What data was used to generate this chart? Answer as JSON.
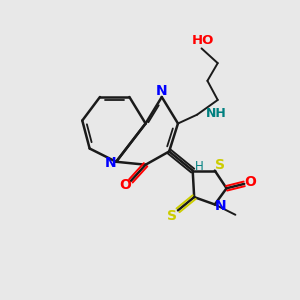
{
  "background_color": "#e8e8e8",
  "bond_color": "#1a1a1a",
  "N_color": "#0000ff",
  "O_color": "#ff0000",
  "S_color": "#cccc00",
  "NH_color": "#008080",
  "H_color": "#008080",
  "figsize": [
    3.0,
    3.0
  ],
  "dpi": 100,
  "xlim": [
    0,
    10
  ],
  "ylim": [
    0,
    10
  ]
}
